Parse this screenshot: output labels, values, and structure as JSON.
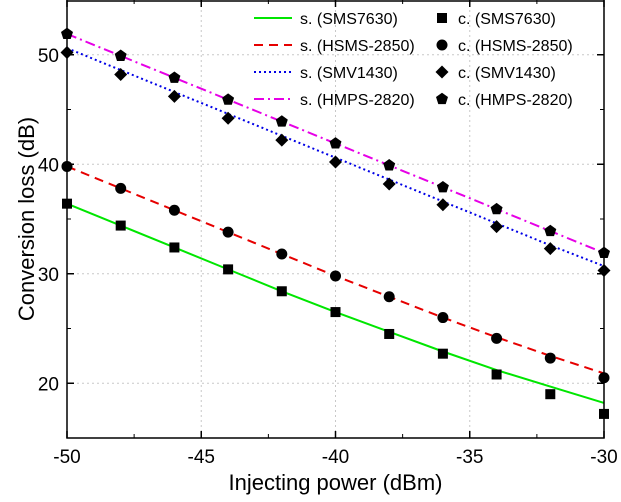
{
  "chart_data": {
    "type": "line",
    "xlabel": "Injecting power (dBm)",
    "ylabel": "Conversion loss (dB)",
    "xlim": [
      -50,
      -30
    ],
    "ylim": [
      15,
      55
    ],
    "xticks": [
      -50,
      -45,
      -40,
      -35,
      -30
    ],
    "yticks": [
      20,
      30,
      40,
      50
    ],
    "grid": true,
    "legend_position": "top-right",
    "x": [
      -50,
      -48,
      -46,
      -44,
      -42,
      -40,
      -38,
      -36,
      -34,
      -32,
      -30
    ],
    "series": [
      {
        "name": "s. (SMS7630)",
        "kind": "line",
        "style": "solid",
        "color": "#00e600",
        "values": [
          36.4,
          34.4,
          32.4,
          30.4,
          28.4,
          26.5,
          24.7,
          22.9,
          21.2,
          19.7,
          18.2
        ]
      },
      {
        "name": "s. (HSMS-2850)",
        "kind": "line",
        "style": "dashed",
        "color": "#e60000",
        "values": [
          39.8,
          37.8,
          35.8,
          33.8,
          31.8,
          29.8,
          27.9,
          26.0,
          24.2,
          22.5,
          20.9
        ]
      },
      {
        "name": "s. (SMV1430)",
        "kind": "line",
        "style": "dotted",
        "color": "#0000e6",
        "values": [
          50.6,
          48.6,
          46.6,
          44.6,
          42.6,
          40.6,
          38.6,
          36.6,
          34.6,
          32.6,
          30.7
        ]
      },
      {
        "name": "s. (HMPS-2820)",
        "kind": "line",
        "style": "dashdot",
        "color": "#e600e6",
        "values": [
          51.9,
          49.9,
          47.9,
          45.9,
          43.9,
          41.9,
          39.9,
          37.9,
          35.9,
          33.9,
          31.9
        ]
      },
      {
        "name": "c. (SMS7630)",
        "kind": "marker",
        "marker": "square",
        "color": "#000000",
        "values": [
          36.4,
          34.4,
          32.4,
          30.4,
          28.4,
          26.5,
          24.5,
          22.7,
          20.8,
          19.0,
          17.2
        ]
      },
      {
        "name": "c. (HSMS-2850)",
        "kind": "marker",
        "marker": "circle",
        "color": "#000000",
        "values": [
          39.8,
          37.8,
          35.8,
          33.8,
          31.8,
          29.8,
          27.9,
          26.0,
          24.1,
          22.3,
          20.5
        ]
      },
      {
        "name": "c. (SMV1430)",
        "kind": "marker",
        "marker": "diamond",
        "color": "#000000",
        "values": [
          50.2,
          48.2,
          46.2,
          44.2,
          42.2,
          40.2,
          38.2,
          36.3,
          34.3,
          32.3,
          30.3
        ]
      },
      {
        "name": "c. (HMPS-2820)",
        "kind": "marker",
        "marker": "pentagon",
        "color": "#000000",
        "values": [
          51.9,
          49.9,
          47.9,
          45.9,
          43.9,
          41.9,
          39.9,
          37.9,
          35.9,
          33.9,
          31.9
        ]
      }
    ]
  }
}
